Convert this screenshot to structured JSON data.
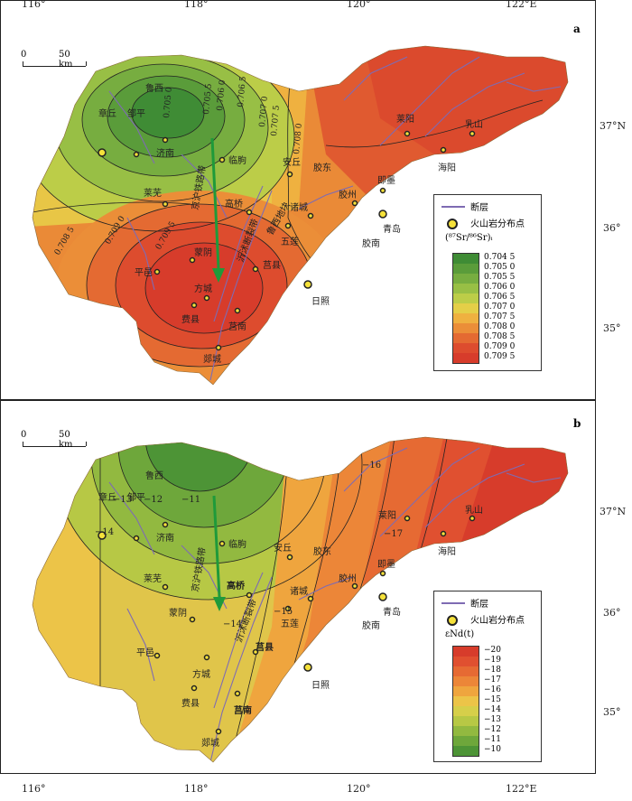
{
  "axes": {
    "lon_labels": [
      "116°",
      "118°",
      "120°",
      "122°E"
    ],
    "lat_labels": [
      "37°N",
      "36°",
      "35°"
    ]
  },
  "panel_a": {
    "label": "a",
    "scale_label": "50 km",
    "scale_zero": "0",
    "legend": {
      "fault": "断层",
      "volcanic": "火山岩分布点",
      "ratio_title": "(⁸⁷Sr/⁸⁶Sr)ᵢ",
      "classes": [
        "0.704 5",
        "0.705 0",
        "0.705 5",
        "0.706 0",
        "0.706 5",
        "0.707 0",
        "0.707 5",
        "0.708 0",
        "0.708 5",
        "0.709 0",
        "0.709 5"
      ],
      "colors": [
        "#3f8c35",
        "#5a9c3a",
        "#77ad40",
        "#98bf45",
        "#bccd48",
        "#e4cf48",
        "#efb140",
        "#eb8e38",
        "#e46a32",
        "#dd4c2e",
        "#d73c2b"
      ]
    },
    "contour_labels": [
      "0.705 0",
      "0.705 5",
      "0.706 0",
      "0.706 5",
      "0.707 0",
      "0.707 5",
      "0.708 0",
      "0.708 5",
      "0.709 0",
      "0.709 5"
    ],
    "places": [
      "章丘",
      "邹平",
      "鲁西",
      "济南",
      "临朐",
      "莱芜",
      "高桥",
      "安丘",
      "胶东",
      "诸城",
      "胶州",
      "即墨",
      "青岛",
      "胶南",
      "莱阳",
      "海阳",
      "乳山",
      "五莲",
      "莒县",
      "日照",
      "蒙阴",
      "平邑",
      "方城",
      "费县",
      "莒南",
      "郯城",
      "沂沭断裂带",
      "鲁西地块",
      "京沪铁路带"
    ]
  },
  "panel_b": {
    "label": "b",
    "scale_label": "50 km",
    "scale_zero": "0",
    "legend": {
      "fault": "断层",
      "volcanic": "火山岩分布点",
      "ratio_title": "εNd(t)",
      "classes": [
        "−20",
        "−19",
        "−18",
        "−17",
        "−16",
        "−15",
        "−14",
        "−13",
        "−12",
        "−11",
        "−10"
      ],
      "colors": [
        "#d73c2b",
        "#e05030",
        "#e66a33",
        "#ec8638",
        "#efa53e",
        "#ecc448",
        "#d6cf4a",
        "#b7c845",
        "#92b940",
        "#6ea73b",
        "#4d9436"
      ]
    },
    "contour_labels": [
      "−11",
      "−12",
      "−13",
      "−14",
      "−15",
      "−16",
      "−17",
      "−14"
    ],
    "places": [
      "章丘",
      "邹平",
      "鲁西",
      "济南",
      "临朐",
      "莱芜",
      "高桥",
      "安丘",
      "胶东",
      "诸城",
      "胶州",
      "即墨",
      "青岛",
      "胶南",
      "莱阳",
      "海阳",
      "乳山",
      "五莲",
      "莒县",
      "日照",
      "蒙阴",
      "平邑",
      "方城",
      "费县",
      "莒南",
      "郯城",
      "沂沭断裂带",
      "京沪铁路带"
    ]
  }
}
